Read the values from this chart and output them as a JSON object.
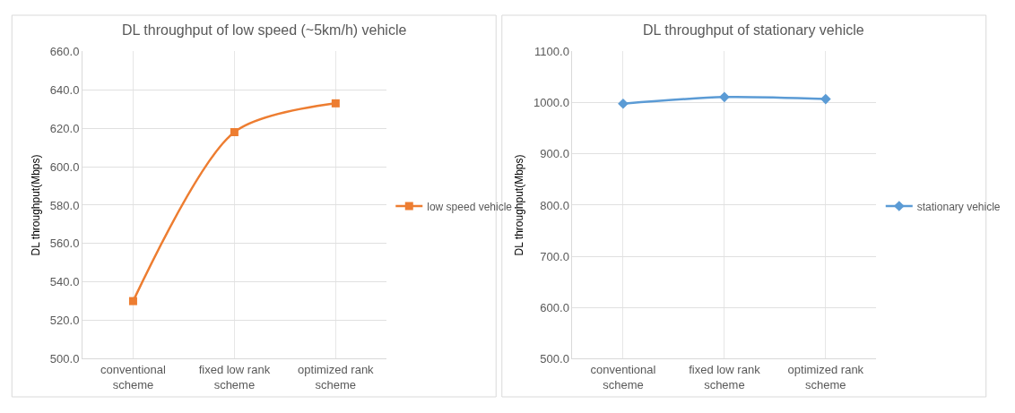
{
  "chart_data": [
    {
      "type": "line",
      "title": "DL throughput of low speed (~5km/h) vehicle",
      "ylabel": "DL throughput(Mbps)",
      "categories": [
        "conventional scheme",
        "fixed low rank scheme",
        "optimized rank scheme"
      ],
      "series": [
        {
          "name": "low speed vehicle",
          "color": "#ed7d31",
          "values": [
            530,
            618,
            633
          ]
        }
      ],
      "ylim": [
        500,
        660
      ],
      "yticks": [
        {
          "value": 500,
          "label": "500.0"
        },
        {
          "value": 520,
          "label": "520.0"
        },
        {
          "value": 540,
          "label": "540.0"
        },
        {
          "value": 560,
          "label": "560.0"
        },
        {
          "value": 580,
          "label": "580.0"
        },
        {
          "value": 600,
          "label": "600.0"
        },
        {
          "value": 620,
          "label": "620.0"
        },
        {
          "value": 640,
          "label": "640.0"
        },
        {
          "value": 660,
          "label": "660.0"
        }
      ],
      "grid": true,
      "legend": "right",
      "marker": "square",
      "line_style": "solid"
    },
    {
      "type": "line",
      "title": "DL throughput of stationary vehicle",
      "ylabel": "DL throughput(Mbps)",
      "categories": [
        "conventional scheme",
        "fixed low rank scheme",
        "optimized rank scheme"
      ],
      "series": [
        {
          "name": "stationary vehicle",
          "color": "#5b9bd5",
          "values": [
            998,
            1011,
            1007
          ]
        }
      ],
      "ylim": [
        500,
        1100
      ],
      "yticks": [
        {
          "value": 500,
          "label": "500.0"
        },
        {
          "value": 600,
          "label": "600.0"
        },
        {
          "value": 700,
          "label": "700.0"
        },
        {
          "value": 800,
          "label": "800.0"
        },
        {
          "value": 900,
          "label": "900.0"
        },
        {
          "value": 1000,
          "label": "1000.0"
        },
        {
          "value": 1100,
          "label": "1100.0"
        }
      ],
      "grid": true,
      "legend": "right",
      "marker": "diamond",
      "line_style": "solid"
    }
  ]
}
